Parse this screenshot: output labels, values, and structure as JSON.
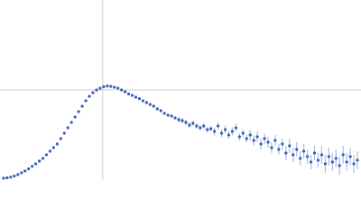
{
  "chart_data": {
    "type": "scatter",
    "color": "#3560b5",
    "error_color": "#a9bfe6",
    "grid": true,
    "xlim": [
      0,
      101
    ],
    "ylim": [
      0,
      1
    ],
    "xticks": [
      28.75
    ],
    "yticks": [
      0.5
    ],
    "x": [
      1,
      2,
      3,
      4,
      5,
      6,
      7,
      8,
      9,
      10,
      11,
      12,
      13,
      14,
      15,
      16,
      17,
      18,
      19,
      20,
      21,
      22,
      23,
      24,
      25,
      26,
      27,
      28,
      29,
      30,
      31,
      32,
      33,
      34,
      35,
      36,
      37,
      38,
      39,
      40,
      41,
      42,
      43,
      44,
      45,
      46,
      47,
      48,
      49,
      50,
      51,
      52,
      53,
      54,
      55,
      56,
      57,
      58,
      59,
      60,
      61,
      62,
      63,
      64,
      65,
      66,
      67,
      68,
      69,
      70,
      71,
      72,
      73,
      74,
      75,
      76,
      77,
      78,
      79,
      80,
      81,
      82,
      83,
      84,
      85,
      86,
      87,
      88,
      89,
      90,
      91,
      92,
      93,
      94,
      95,
      96,
      97,
      98,
      99,
      100
    ],
    "values": [
      0.01,
      0.012,
      0.016,
      0.022,
      0.03,
      0.04,
      0.05,
      0.062,
      0.076,
      0.09,
      0.105,
      0.12,
      0.14,
      0.16,
      0.18,
      0.2,
      0.23,
      0.26,
      0.29,
      0.32,
      0.35,
      0.38,
      0.41,
      0.44,
      0.465,
      0.485,
      0.5,
      0.51,
      0.518,
      0.522,
      0.52,
      0.515,
      0.51,
      0.5,
      0.49,
      0.478,
      0.47,
      0.46,
      0.452,
      0.44,
      0.43,
      0.42,
      0.41,
      0.395,
      0.385,
      0.37,
      0.36,
      0.355,
      0.345,
      0.335,
      0.33,
      0.32,
      0.305,
      0.315,
      0.3,
      0.29,
      0.3,
      0.28,
      0.285,
      0.27,
      0.3,
      0.26,
      0.28,
      0.25,
      0.27,
      0.29,
      0.24,
      0.26,
      0.23,
      0.25,
      0.22,
      0.24,
      0.2,
      0.23,
      0.21,
      0.18,
      0.22,
      0.17,
      0.2,
      0.15,
      0.19,
      0.14,
      0.17,
      0.12,
      0.16,
      0.13,
      0.1,
      0.15,
      0.11,
      0.14,
      0.09,
      0.13,
      0.1,
      0.12,
      0.08,
      0.14,
      0.1,
      0.13,
      0.09,
      0.11
    ],
    "errors": [
      0,
      0,
      0,
      0,
      0,
      0,
      0,
      0,
      0,
      0,
      0,
      0,
      0,
      0,
      0,
      0,
      0,
      0,
      0,
      0,
      0,
      0,
      0,
      0,
      0,
      0,
      0,
      0,
      0,
      0,
      0,
      0,
      0,
      0,
      0.004,
      0.004,
      0.004,
      0.004,
      0.004,
      0.008,
      0.008,
      0.008,
      0.008,
      0.008,
      0.008,
      0.008,
      0.008,
      0.008,
      0.008,
      0.015,
      0.015,
      0.015,
      0.015,
      0.015,
      0.015,
      0.015,
      0.015,
      0.015,
      0.015,
      0.022,
      0.022,
      0.022,
      0.022,
      0.022,
      0.022,
      0.022,
      0.022,
      0.022,
      0.022,
      0.03,
      0.03,
      0.03,
      0.03,
      0.03,
      0.03,
      0.03,
      0.03,
      0.03,
      0.03,
      0.04,
      0.04,
      0.04,
      0.04,
      0.04,
      0.04,
      0.04,
      0.04,
      0.04,
      0.04,
      0.05,
      0.05,
      0.05,
      0.05,
      0.05,
      0.05,
      0.05,
      0.05,
      0.05,
      0.05,
      0.05
    ]
  }
}
